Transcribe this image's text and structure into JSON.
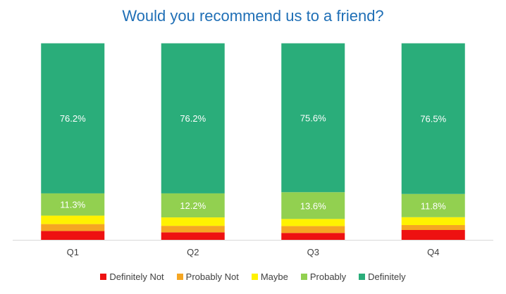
{
  "chart_data": {
    "type": "bar",
    "stacked": true,
    "title": "Would you recommend us to a friend?",
    "categories": [
      "Q1",
      "Q2",
      "Q3",
      "Q4"
    ],
    "ylim": [
      0,
      100
    ],
    "grid": false,
    "legend_position": "bottom",
    "series": [
      {
        "name": "Definitely Not",
        "color": "#ee1111",
        "values": [
          4.5,
          3.8,
          3.5,
          5.0
        ]
      },
      {
        "name": "Probably Not",
        "color": "#f5a623",
        "values": [
          3.5,
          3.3,
          3.5,
          2.5
        ]
      },
      {
        "name": "Maybe",
        "color": "#fff200",
        "values": [
          4.3,
          4.3,
          3.6,
          4.0
        ]
      },
      {
        "name": "Probably",
        "color": "#92d050",
        "values": [
          11.3,
          12.2,
          13.6,
          11.8
        ]
      },
      {
        "name": "Definitely",
        "color": "#2aad7a",
        "values": [
          76.2,
          76.2,
          75.6,
          76.5
        ]
      }
    ],
    "data_labels": [
      {
        "series": "Probably",
        "labels": [
          "11.3%",
          "12.2%",
          "13.6%",
          "11.8%"
        ]
      },
      {
        "series": "Definitely",
        "labels": [
          "76.2%",
          "76.2%",
          "75.6%",
          "76.5%"
        ]
      }
    ]
  }
}
